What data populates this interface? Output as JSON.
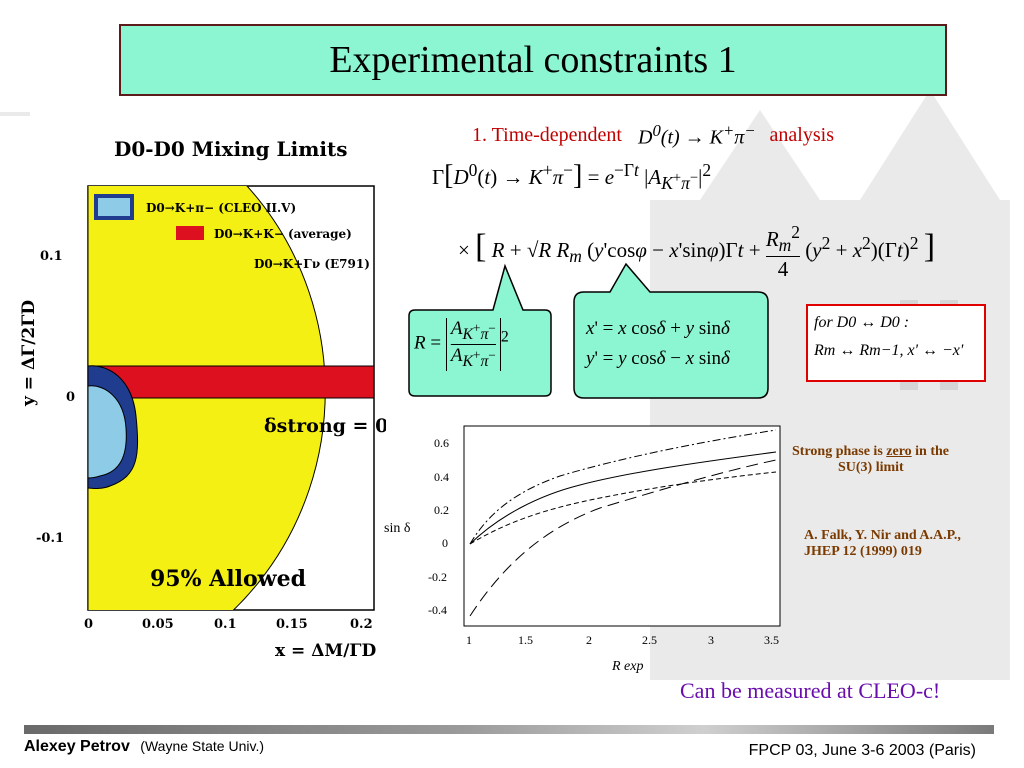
{
  "slide": {
    "title": "Experimental constraints 1",
    "footer_author": "Alexey Petrov",
    "footer_affiliation": "(Wayne State Univ.)",
    "footer_conference": "FPCP 03, June 3-6 2003 (Paris)"
  },
  "mixing_plot": {
    "title": "D0-D0 Mixing Limits",
    "ylabel": "y = ΔΓ/2ΓD",
    "xlabel": "x = ΔM/ΓD",
    "yticks": [
      "0.1",
      "0",
      "-0.1"
    ],
    "xticks": [
      "0",
      "0.05",
      "0.1",
      "0.15",
      "0.2"
    ],
    "legend": [
      {
        "label": "D0→K+π− (CLEO II.V)",
        "color": "#8ecbe6"
      },
      {
        "label": "D0→K+K− (average)",
        "color": "#dd1020"
      },
      {
        "label": "D0→K+Γν (E791)",
        "color": "#f4f014"
      }
    ],
    "annotation": "δstrong = 0",
    "allowed_label": "95% Allowed"
  },
  "analysis": {
    "prefix": "1. Time-dependent",
    "suffix": "analysis"
  },
  "constraint_box": {
    "line1": "for D0 ↔ D0 :",
    "line2": "Rm ↔ Rm−1,  x' ↔ −x'"
  },
  "sin_plot": {
    "ylabel": "sin δ",
    "xlabel": "R exp",
    "yticks": [
      "0.6",
      "0.4",
      "0.2",
      "0",
      "-0.2",
      "-0.4"
    ],
    "xticks": [
      "1",
      "1.5",
      "2",
      "2.5",
      "3",
      "3.5"
    ]
  },
  "notes": {
    "strong_phase_pre": "Strong phase is ",
    "strong_phase_zero": "zero",
    "strong_phase_post": " in the",
    "strong_phase_line2": "SU(3) limit",
    "reference_line1": "A. Falk, Y. Nir  and A.A.P.,",
    "reference_line2": "JHEP 12 (1999)  019",
    "cleo_c": "Can be measured at CLEO-c!"
  },
  "colors": {
    "title_bg": "#8cf5d2",
    "callout_bg": "#8cf5d2",
    "accent_red": "#c00000",
    "note_brown": "#7a3a00",
    "cleo_purple": "#6a0dad"
  }
}
